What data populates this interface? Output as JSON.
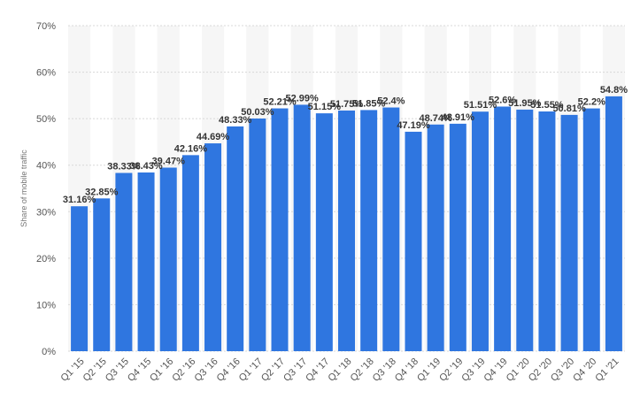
{
  "chart_data": {
    "type": "bar",
    "title": "",
    "xlabel": "",
    "ylabel": "Share of mobile traffic",
    "ylim": [
      0,
      70
    ],
    "yticks": [
      "0%",
      "10%",
      "20%",
      "30%",
      "40%",
      "50%",
      "60%",
      "70%"
    ],
    "grid": true,
    "legend": "none",
    "bar_color": "#2f76e0",
    "categories": [
      "Q1 '15",
      "Q2 '15",
      "Q3 '15",
      "Q4 '15",
      "Q1 '16",
      "Q2 '16",
      "Q3 '16",
      "Q4 '16",
      "Q1 '17",
      "Q2 '17",
      "Q3 '17",
      "Q4 '17",
      "Q1 '18",
      "Q2 '18",
      "Q3 '18",
      "Q4 '18",
      "Q1 '19",
      "Q2 '19",
      "Q3 '19",
      "Q4 '19",
      "Q1 '20",
      "Q2 '20",
      "Q3 '20",
      "Q4 '20",
      "Q1 '21"
    ],
    "values": [
      31.16,
      32.85,
      38.33,
      38.43,
      39.47,
      42.16,
      44.69,
      48.33,
      50.03,
      52.21,
      52.99,
      51.15,
      51.75,
      51.85,
      52.4,
      47.19,
      48.74,
      48.91,
      51.51,
      52.6,
      51.95,
      51.55,
      50.81,
      52.2,
      54.8
    ],
    "data_labels": [
      "31.16%",
      "32.85%",
      "38.33%",
      "38.43%",
      "39.47%",
      "42.16%",
      "44.69%",
      "48.33%",
      "50.03%",
      "52.21%",
      "52.99%",
      "51.15%",
      "51.75%",
      "51.85%",
      "52.4%",
      "47.19%",
      "48.74%",
      "48.91%",
      "51.51%",
      "52.6%",
      "51.95%",
      "51.55%",
      "50.81%",
      "52.2%",
      "54.8%"
    ]
  }
}
